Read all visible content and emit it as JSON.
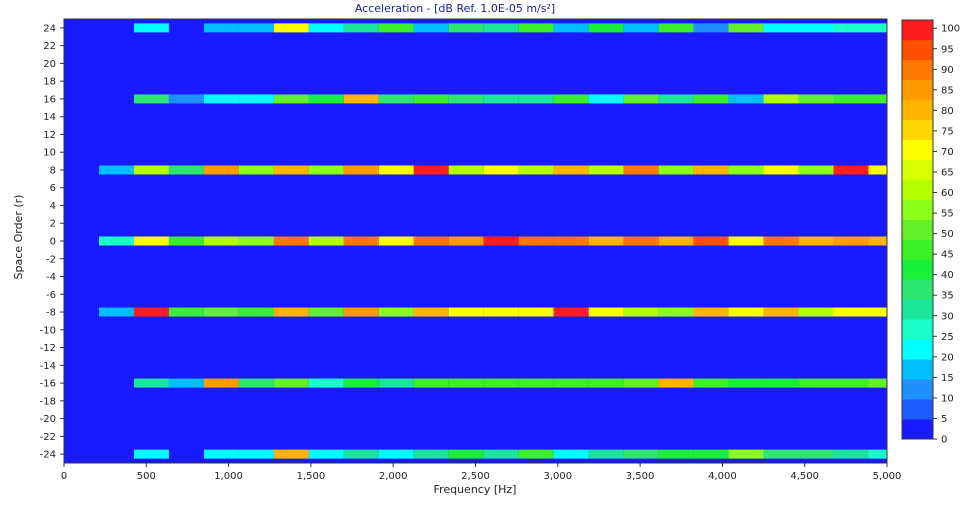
{
  "chart_data": {
    "type": "heatmap",
    "title": "Acceleration - [dB Ref. 1.0E-05 m/s²]",
    "xlabel": "Frequency [Hz]",
    "ylabel": "Space Order (r)",
    "xlim": [
      0,
      5000
    ],
    "ylim": [
      -25,
      25
    ],
    "x_ticks": [
      0,
      500,
      1000,
      1500,
      2000,
      2500,
      3000,
      3500,
      4000,
      4500,
      5000
    ],
    "x_tick_labels": [
      "0",
      "500",
      "1,000",
      "1,500",
      "2,000",
      "2,500",
      "3,000",
      "3,500",
      "4,000",
      "4,500",
      "5,000"
    ],
    "y_ticks": [
      24,
      22,
      20,
      18,
      16,
      14,
      12,
      10,
      8,
      6,
      4,
      2,
      0,
      -2,
      -4,
      -6,
      -8,
      -10,
      -12,
      -14,
      -16,
      -18,
      -20,
      -22,
      -24
    ],
    "x_bins": [
      0,
      212.5,
      425,
      637.5,
      850,
      1062.5,
      1275,
      1487.5,
      1700,
      1912.5,
      2125,
      2337.5,
      2550,
      2762.5,
      2975,
      3187.5,
      3400,
      3612.5,
      3825,
      4037.5,
      4250,
      4462.5,
      4675,
      4887.5
    ],
    "bin_width": 212.5,
    "background_value": 3,
    "rows": [
      {
        "r": 24,
        "values": [
          null,
          null,
          22,
          null,
          17,
          17,
          68,
          22,
          33,
          48,
          17,
          38,
          33,
          48,
          17,
          43,
          17,
          48,
          12,
          53,
          22,
          22,
          27,
          27
        ]
      },
      {
        "r": 16,
        "values": [
          null,
          null,
          38,
          10,
          22,
          22,
          53,
          43,
          78,
          38,
          48,
          38,
          33,
          33,
          48,
          22,
          53,
          33,
          48,
          17,
          63,
          53,
          48,
          48
        ]
      },
      {
        "r": 8,
        "values": [
          null,
          15,
          63,
          38,
          84,
          58,
          78,
          58,
          84,
          68,
          100,
          63,
          68,
          63,
          78,
          63,
          89,
          58,
          78,
          58,
          68,
          58,
          100,
          68
        ]
      },
      {
        "r": 0,
        "values": [
          null,
          27,
          68,
          48,
          63,
          58,
          89,
          63,
          89,
          68,
          89,
          84,
          100,
          89,
          89,
          78,
          89,
          78,
          95,
          68,
          89,
          78,
          84,
          78
        ]
      },
      {
        "r": -8,
        "values": [
          null,
          17,
          100,
          48,
          53,
          48,
          78,
          53,
          84,
          58,
          78,
          68,
          68,
          68,
          100,
          68,
          63,
          58,
          78,
          68,
          78,
          63,
          68,
          68
        ]
      },
      {
        "r": -16,
        "values": [
          null,
          null,
          33,
          17,
          84,
          38,
          53,
          27,
          43,
          33,
          48,
          48,
          48,
          48,
          48,
          48,
          53,
          78,
          48,
          43,
          43,
          48,
          48,
          53
        ]
      },
      {
        "r": -24,
        "values": [
          null,
          null,
          22,
          null,
          22,
          22,
          78,
          22,
          33,
          22,
          33,
          43,
          33,
          48,
          22,
          33,
          38,
          43,
          43,
          58,
          38,
          38,
          33,
          27
        ]
      }
    ],
    "colorbar": {
      "min": 0,
      "max": 102,
      "ticks": [
        100,
        95,
        90,
        85,
        80,
        75,
        70,
        65,
        60,
        55,
        50,
        45,
        40,
        35,
        30,
        25,
        20,
        15,
        10,
        5,
        0
      ],
      "colors": [
        "#1a1aff",
        "#1f5cff",
        "#1e90ff",
        "#00bfff",
        "#00ffff",
        "#19ffc8",
        "#19e69b",
        "#2ce670",
        "#19f03c",
        "#3cf028",
        "#64f028",
        "#8cff19",
        "#b4ff00",
        "#d7ff00",
        "#ffff00",
        "#ffd700",
        "#ffb400",
        "#ff9a00",
        "#ff7800",
        "#ff5000",
        "#ff1e1e"
      ]
    }
  }
}
